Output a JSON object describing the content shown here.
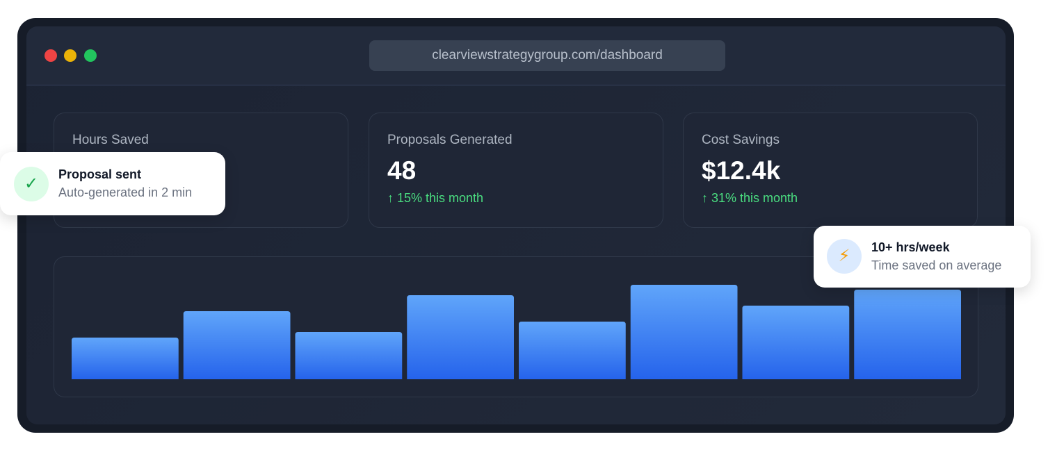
{
  "browser": {
    "url": "clearviewstrategygroup.com/dashboard"
  },
  "stats": [
    {
      "label": "Hours Saved"
    },
    {
      "label": "Proposals Generated",
      "value": "48",
      "change": "↑ 15% this month"
    },
    {
      "label": "Cost Savings",
      "value": "$12.4k",
      "change": "↑ 31% this month"
    }
  ],
  "chart_data": {
    "type": "bar",
    "values": [
      60,
      98,
      68,
      121,
      83,
      136,
      106,
      129
    ],
    "ylim": [
      0,
      145
    ]
  },
  "toasts": [
    {
      "title": "Proposal sent",
      "subtitle": "Auto-generated in 2 min"
    },
    {
      "title": "10+ hrs/week",
      "subtitle": "Time saved on average"
    }
  ]
}
